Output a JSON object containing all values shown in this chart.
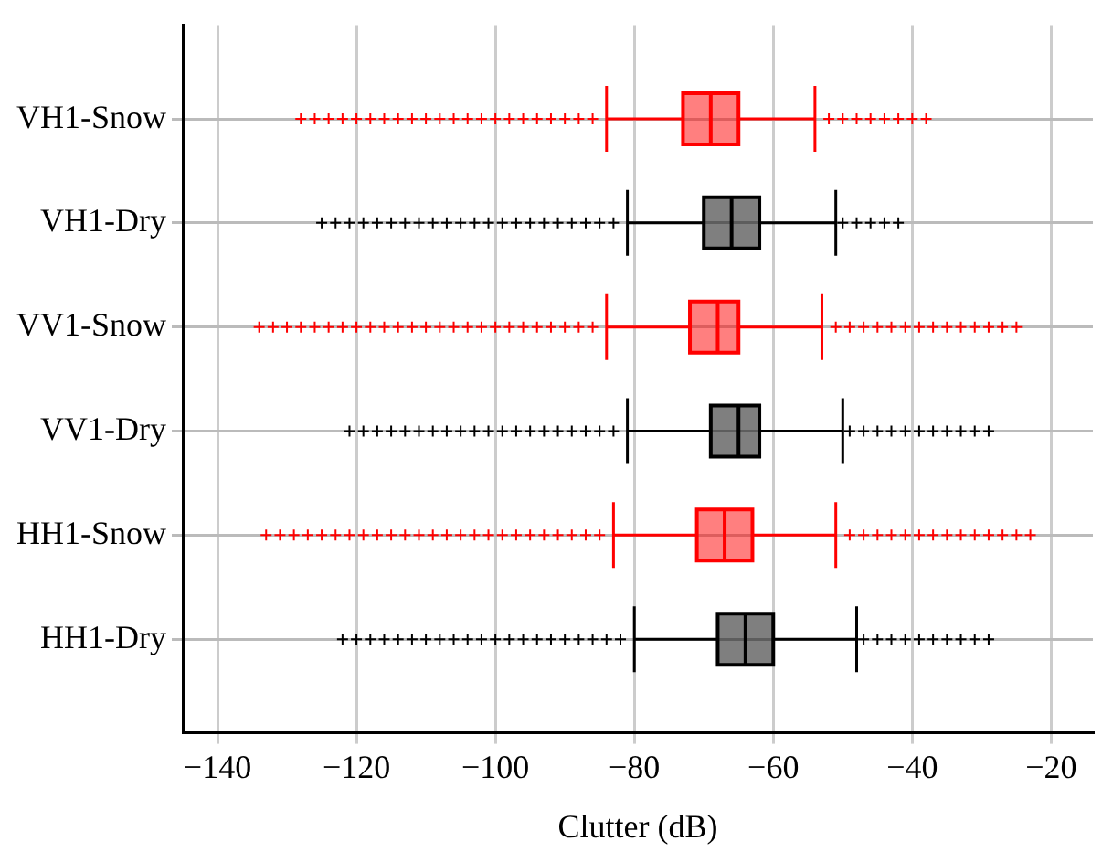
{
  "chart_data": {
    "type": "box",
    "orientation": "horizontal",
    "xlabel": "Clutter (dB)",
    "categories": [
      "VH1-Snow",
      "VH1-Dry",
      "VV1-Snow",
      "VV1-Dry",
      "HH1-Snow",
      "HH1-Dry"
    ],
    "colors": [
      "#ff0000",
      "#000000",
      "#ff0000",
      "#000000",
      "#ff0000",
      "#000000"
    ],
    "boxes": [
      {
        "low": -84,
        "q1": -73,
        "median": -69,
        "q3": -65,
        "high": -54,
        "outliers": [
          -128,
          -126,
          -124,
          -122,
          -120,
          -118,
          -116,
          -114,
          -112,
          -110,
          -108,
          -106,
          -104,
          -102,
          -100,
          -98,
          -96,
          -94,
          -92,
          -90,
          -88,
          -86,
          -52,
          -50,
          -48,
          -46,
          -44,
          -42,
          -40,
          -38
        ]
      },
      {
        "low": -81,
        "q1": -70,
        "median": -66,
        "q3": -62,
        "high": -51,
        "outliers": [
          -125,
          -123,
          -121,
          -119,
          -117,
          -115,
          -113,
          -111,
          -109,
          -107,
          -105,
          -103,
          -101,
          -99,
          -97,
          -95,
          -93,
          -91,
          -89,
          -87,
          -85,
          -83,
          -50,
          -48,
          -46,
          -44,
          -42
        ]
      },
      {
        "low": -84,
        "q1": -72,
        "median": -68,
        "q3": -65,
        "high": -53,
        "outliers": [
          -134,
          -132,
          -130,
          -128,
          -126,
          -124,
          -122,
          -120,
          -118,
          -116,
          -114,
          -112,
          -110,
          -108,
          -106,
          -104,
          -102,
          -100,
          -98,
          -96,
          -94,
          -92,
          -90,
          -88,
          -86,
          -51,
          -49,
          -47,
          -45,
          -43,
          -41,
          -39,
          -37,
          -35,
          -33,
          -31,
          -29,
          -27,
          -25
        ]
      },
      {
        "low": -81,
        "q1": -69,
        "median": -65,
        "q3": -62,
        "high": -50,
        "outliers": [
          -121,
          -119,
          -117,
          -115,
          -113,
          -111,
          -109,
          -107,
          -105,
          -103,
          -101,
          -99,
          -97,
          -95,
          -93,
          -91,
          -89,
          -87,
          -85,
          -83,
          -49,
          -47,
          -45,
          -43,
          -41,
          -39,
          -37,
          -35,
          -33,
          -31,
          -29
        ]
      },
      {
        "low": -83,
        "q1": -71,
        "median": -67,
        "q3": -63,
        "high": -51,
        "outliers": [
          -133,
          -131,
          -129,
          -127,
          -125,
          -123,
          -121,
          -119,
          -117,
          -115,
          -113,
          -111,
          -109,
          -107,
          -105,
          -103,
          -101,
          -99,
          -97,
          -95,
          -93,
          -91,
          -89,
          -87,
          -85,
          -49,
          -47,
          -45,
          -43,
          -41,
          -39,
          -37,
          -35,
          -33,
          -31,
          -29,
          -27,
          -25,
          -23
        ]
      },
      {
        "low": -80,
        "q1": -68,
        "median": -64,
        "q3": -60,
        "high": -48,
        "outliers": [
          -122,
          -120,
          -118,
          -116,
          -114,
          -112,
          -110,
          -108,
          -106,
          -104,
          -102,
          -100,
          -98,
          -96,
          -94,
          -92,
          -90,
          -88,
          -86,
          -84,
          -82,
          -47,
          -45,
          -43,
          -41,
          -39,
          -37,
          -35,
          -33,
          -31,
          -29
        ]
      }
    ],
    "xlim": [
      -145,
      -14
    ],
    "xticks": [
      -140,
      -120,
      -100,
      -80,
      -60,
      -40,
      -20
    ],
    "grid": true,
    "marker": "cross"
  }
}
